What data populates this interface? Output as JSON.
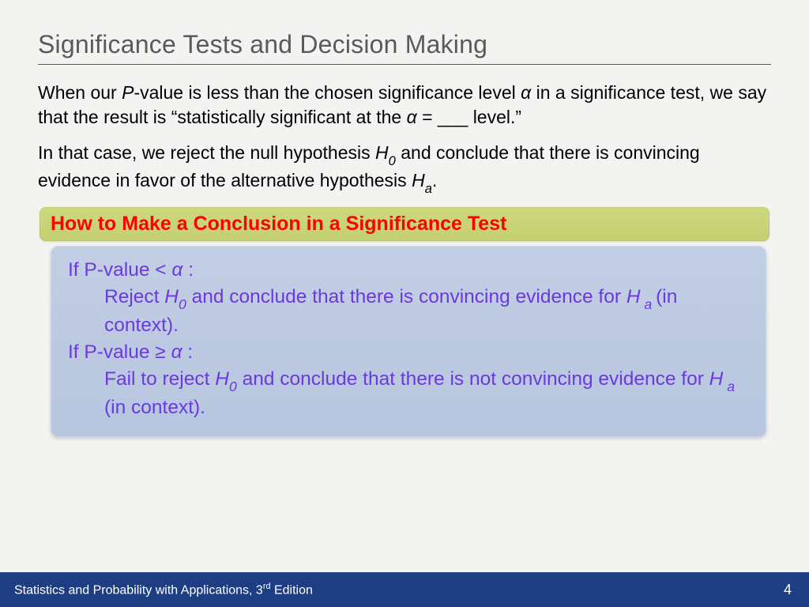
{
  "title": "Significance Tests and Decision Making",
  "para1": {
    "seg1": "When our ",
    "pvar": "P",
    "seg2": "-value is less than the chosen significance level ",
    "alpha1": "α",
    "seg3": " in a significance test, we say that the result is “statistically significant at the ",
    "alpha2": "α",
    "seg4": " = ___ level.”"
  },
  "para2": {
    "seg1": "In that case, we reject the null hypothesis ",
    "h": "H",
    "zero": "0",
    "seg2": " and conclude that there is convincing evidence in favor of the alternative hypothesis ",
    "h2": "H",
    "a": "a",
    "seg3": "."
  },
  "green_bar": "How to Make a Conclusion in a Significance Test",
  "rules": {
    "r1": {
      "head_a": "If P-value < ",
      "alpha": "α",
      "head_b": " :",
      "body_a": "Reject ",
      "h": "H",
      "zero": "0",
      "body_b": " and conclude that there is convincing evidence for ",
      "h2": "H",
      "asub": " a ",
      "body_c": "(in context)."
    },
    "r2": {
      "head_a": "If P-value ≥ ",
      "alpha": "α",
      "head_b": " :",
      "body_a": "Fail to reject ",
      "h": "H",
      "zero": "0",
      "body_b": " and conclude that there is not convincing evidence for ",
      "h2": "H",
      "asub": " a ",
      "body_c": "(in context)."
    }
  },
  "footer": {
    "text_a": "Statistics and Probability with Applications, 3",
    "ord": "rd",
    "text_b": " Edition",
    "page": "4"
  },
  "colors": {
    "title_rule": "#3a5fa8",
    "green_bar_bg_top": "#cfd97f",
    "green_bar_bg_bottom": "#c2cf6f",
    "green_bar_text": "#ff0000",
    "blue_box_bg_top": "#c2cee3",
    "blue_box_bg_bottom": "#b7c6df",
    "blue_box_text": "#6b39e0",
    "footer_bg": "#1e3e84",
    "page_bg": "#f4f4f2"
  },
  "fonts": {
    "title_size_pt": 24,
    "body_size_pt": 17,
    "green_bar_size_pt": 19,
    "blue_box_size_pt": 18,
    "footer_size_pt": 12
  }
}
